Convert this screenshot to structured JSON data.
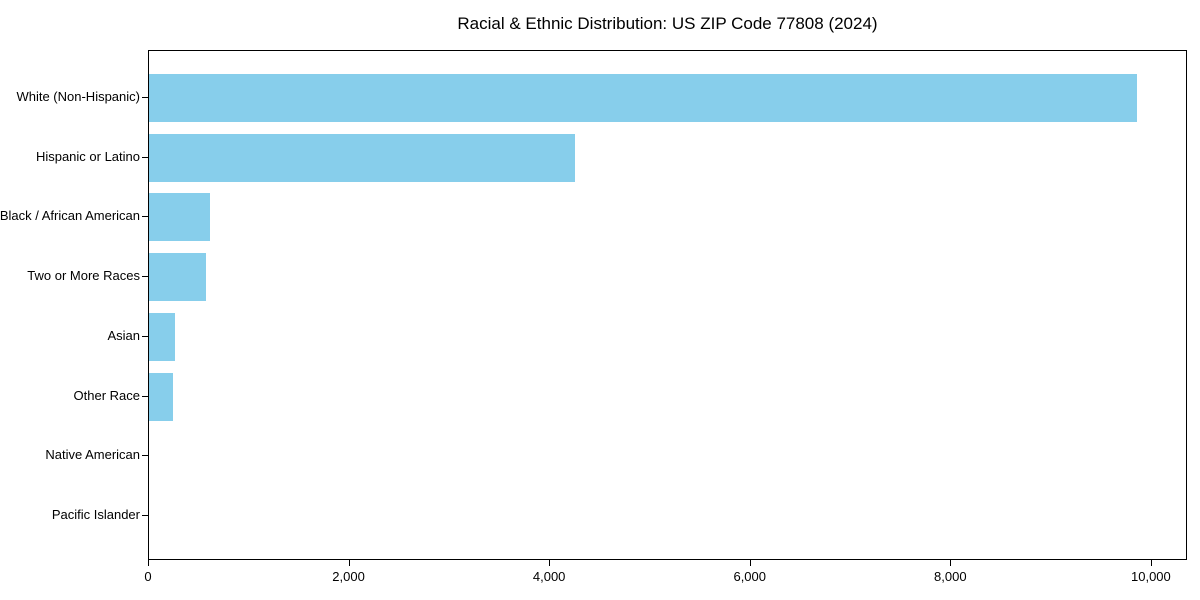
{
  "chart_data": {
    "type": "bar",
    "orientation": "horizontal",
    "title": "Racial & Ethnic Distribution: US ZIP Code 77808 (2024)",
    "categories": [
      "White (Non-Hispanic)",
      "Hispanic or Latino",
      "Black / African American",
      "Two or More Races",
      "Asian",
      "Other Race",
      "Native American",
      "Pacific Islander"
    ],
    "values": [
      9870,
      4260,
      605,
      570,
      260,
      235,
      0,
      0
    ],
    "xlabel": "",
    "ylabel": "",
    "xlim": [
      0,
      10360
    ],
    "xtick_values": [
      0,
      2000,
      4000,
      6000,
      8000,
      10000
    ],
    "xtick_labels": [
      "0",
      "2,000",
      "4,000",
      "6,000",
      "8,000",
      "10,000"
    ],
    "bar_color": "#87CEEB",
    "axis_color": "#000000",
    "grid": false,
    "legend": null
  }
}
